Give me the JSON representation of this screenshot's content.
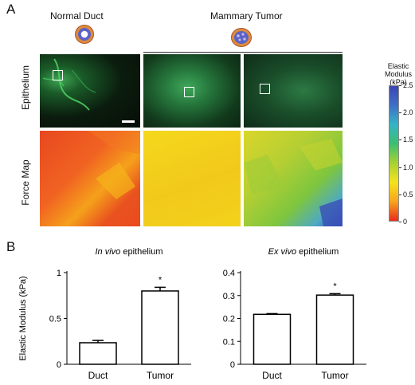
{
  "panel_labels": {
    "a": "A",
    "b": "B"
  },
  "column_titles": {
    "normal": "Normal Duct",
    "tumor": "Mammary Tumor"
  },
  "row_labels": {
    "epithelium": "Epithelium",
    "force_map": "Force Map"
  },
  "colorbar": {
    "title_lines": [
      "Elastic",
      "Modulus",
      "(kPa)"
    ],
    "ticks": [
      "2.5",
      "2.0",
      "1.5",
      "1.0",
      "0.5",
      "0"
    ],
    "colors": [
      "#3c45b2",
      "#3f6fc8",
      "#35b4c7",
      "#3bbf6f",
      "#a8d232",
      "#f4e31c",
      "#f6a51c",
      "#ea2c1e"
    ]
  },
  "images": {
    "epithelium_colors": [
      "#0c1a0e",
      "#2e8d44",
      "#133a1c"
    ],
    "force_map_colors": {
      "normal": [
        "#f36522",
        "#e94b1f",
        "#f4a51a"
      ],
      "tumor_1": [
        "#f3d51c",
        "#f0c41c"
      ],
      "tumor_2": [
        "#d8d62a",
        "#98c93a",
        "#3f9ad5",
        "#3748b4"
      ]
    }
  },
  "chart_data": [
    {
      "type": "bar",
      "title_italic": "In vivo",
      "title_rest": " epithelium",
      "ylabel": "Elastic Modulus (kPa)",
      "categories": [
        "Duct",
        "Tumor"
      ],
      "values": [
        0.235,
        0.8
      ],
      "errors": [
        0.025,
        0.04
      ],
      "ylim": [
        0,
        1
      ],
      "yticks": [
        0,
        0.5,
        1
      ],
      "ytick_labels": [
        "0",
        "0.5",
        "1"
      ],
      "significance": [
        "",
        "*"
      ]
    },
    {
      "type": "bar",
      "title_italic": "Ex vivo",
      "title_rest": " epithelium",
      "ylabel": "",
      "categories": [
        "Duct",
        "Tumor"
      ],
      "values": [
        0.218,
        0.302
      ],
      "errors": [
        0.003,
        0.006
      ],
      "ylim": [
        0,
        0.4
      ],
      "yticks": [
        0,
        0.1,
        0.2,
        0.3,
        0.4
      ],
      "ytick_labels": [
        "0",
        "0.1",
        "0.2",
        "0.3",
        "0.4"
      ],
      "significance": [
        "",
        "*"
      ]
    }
  ]
}
